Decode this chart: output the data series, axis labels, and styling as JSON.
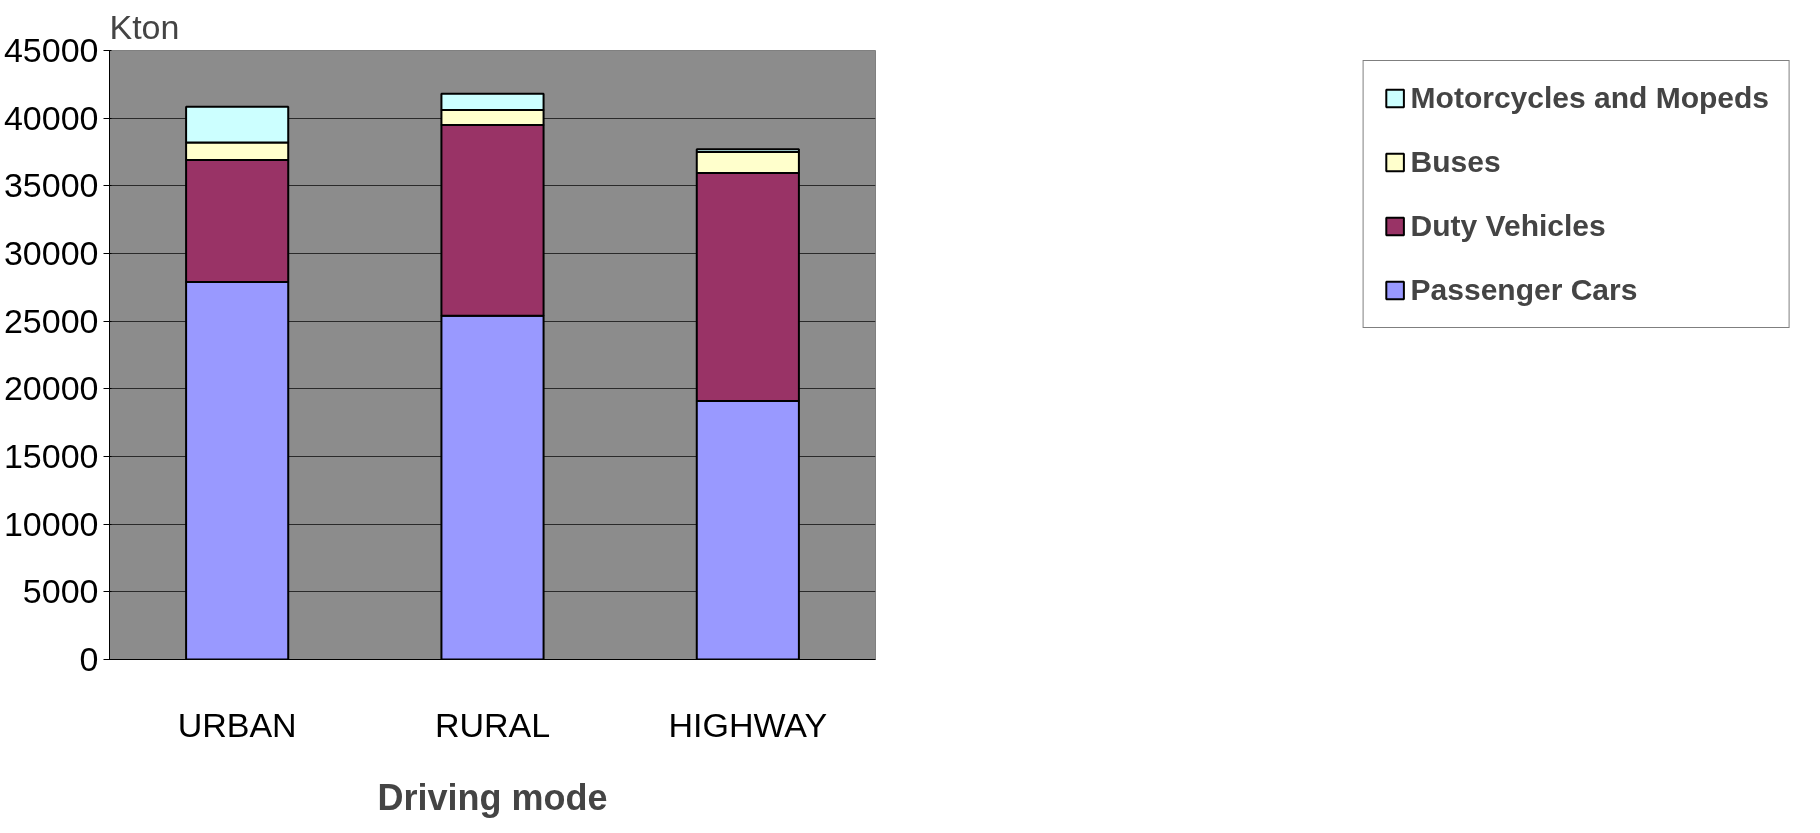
{
  "chart_data": {
    "type": "bar",
    "stacked": true,
    "xlabel": "Driving mode",
    "ylabel": "Kton",
    "categories": [
      "URBAN",
      "RURAL",
      "HIGHWAY"
    ],
    "series": [
      {
        "name": "Passenger Cars",
        "color": "#9999ff",
        "values": [
          27900,
          25400,
          19100
        ]
      },
      {
        "name": "Duty Vehicles",
        "color": "#993366",
        "values": [
          9000,
          14100,
          16850
        ]
      },
      {
        "name": "Buses",
        "color": "#ffffcc",
        "values": [
          1300,
          1100,
          1550
        ]
      },
      {
        "name": "Motorcycles and Mopeds",
        "color": "#ccffff",
        "values": [
          2650,
          1200,
          200
        ]
      }
    ],
    "ylim": [
      0,
      45000
    ],
    "yticks": [
      0,
      5000,
      10000,
      15000,
      20000,
      25000,
      30000,
      35000,
      40000,
      45000
    ],
    "grid": "y",
    "legend": "right"
  }
}
